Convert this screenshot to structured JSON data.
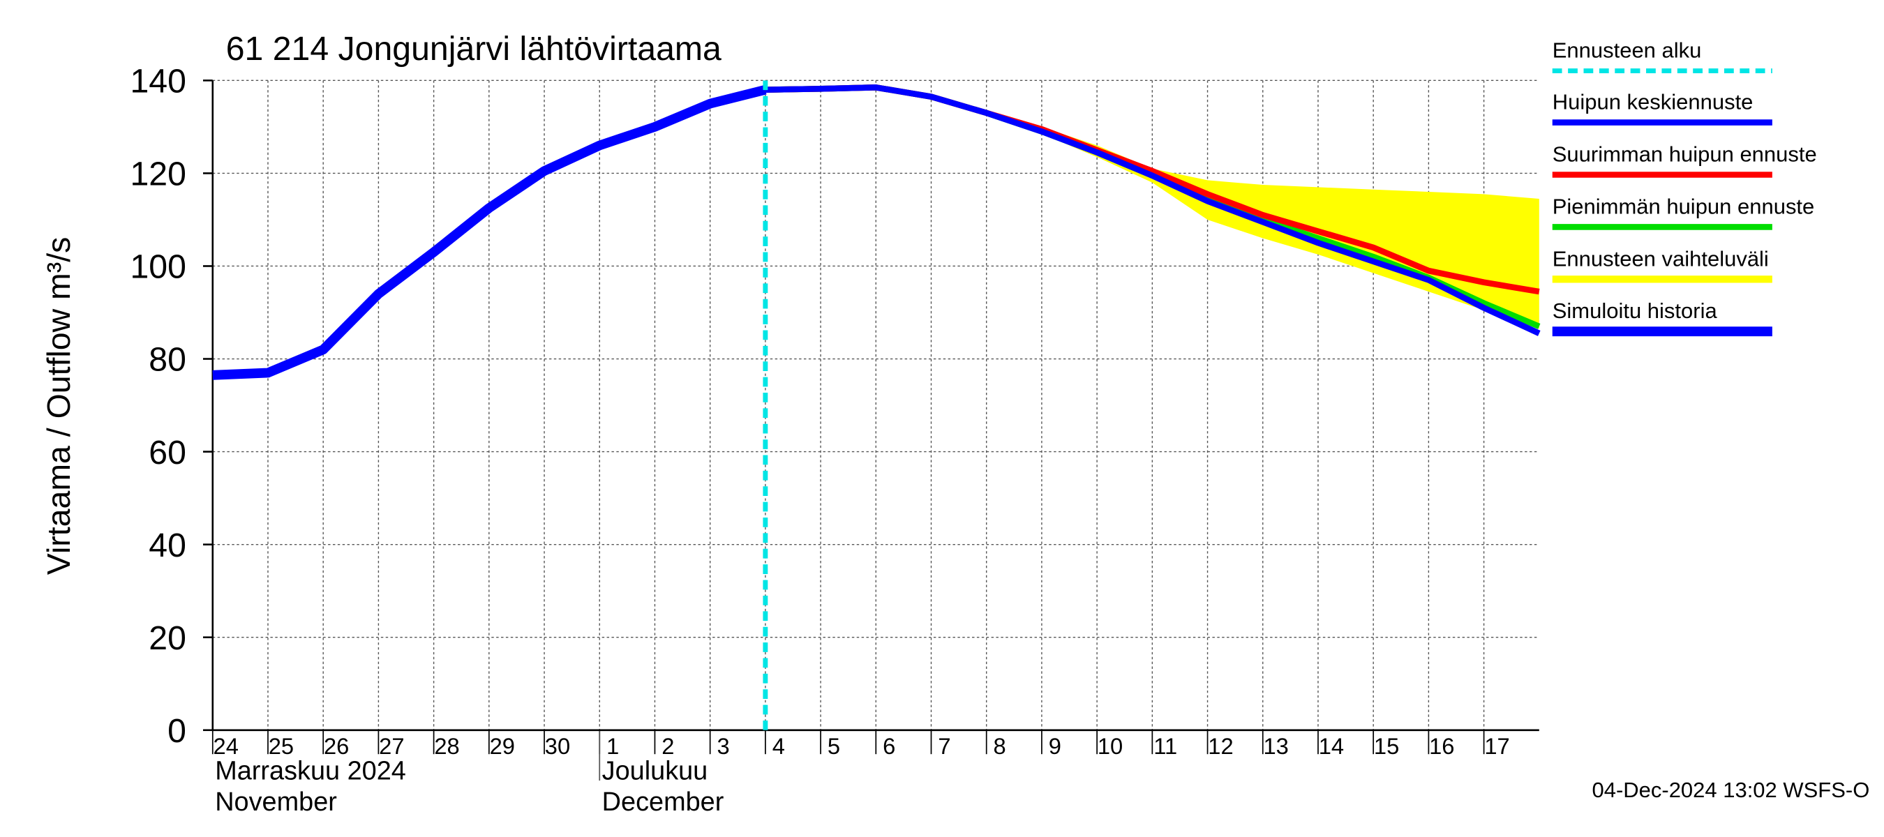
{
  "chart_data": {
    "type": "line",
    "title": "61 214 Jongunjärvi lähtövirtaama",
    "y_label": "Virtaama / Outflow   m³/s",
    "footer": "04-Dec-2024 13:02 WSFS-O",
    "x": [
      "2024-11-24",
      "2024-11-25",
      "2024-11-26",
      "2024-11-27",
      "2024-11-28",
      "2024-11-29",
      "2024-11-30",
      "2024-12-01",
      "2024-12-02",
      "2024-12-03",
      "2024-12-04",
      "2024-12-05",
      "2024-12-06",
      "2024-12-07",
      "2024-12-08",
      "2024-12-09",
      "2024-12-10",
      "2024-12-11",
      "2024-12-12",
      "2024-12-13",
      "2024-12-14",
      "2024-12-15",
      "2024-12-16",
      "2024-12-17",
      "2024-12-18"
    ],
    "xlim": [
      "2024-11-24",
      "2024-12-18"
    ],
    "xticks": [
      {
        "value": "2024-11-24",
        "label": "24"
      },
      {
        "value": "2024-11-25",
        "label": "25"
      },
      {
        "value": "2024-11-26",
        "label": "26"
      },
      {
        "value": "2024-11-27",
        "label": "27"
      },
      {
        "value": "2024-11-28",
        "label": "28"
      },
      {
        "value": "2024-11-29",
        "label": "29"
      },
      {
        "value": "2024-11-30",
        "label": "30"
      },
      {
        "value": "2024-12-01",
        "label": "1"
      },
      {
        "value": "2024-12-02",
        "label": "2"
      },
      {
        "value": "2024-12-03",
        "label": "3"
      },
      {
        "value": "2024-12-04",
        "label": "4"
      },
      {
        "value": "2024-12-05",
        "label": "5"
      },
      {
        "value": "2024-12-06",
        "label": "6"
      },
      {
        "value": "2024-12-07",
        "label": "7"
      },
      {
        "value": "2024-12-08",
        "label": "8"
      },
      {
        "value": "2024-12-09",
        "label": "9"
      },
      {
        "value": "2024-12-10",
        "label": "10"
      },
      {
        "value": "2024-12-11",
        "label": "11"
      },
      {
        "value": "2024-12-12",
        "label": "12"
      },
      {
        "value": "2024-12-13",
        "label": "13"
      },
      {
        "value": "2024-12-14",
        "label": "14"
      },
      {
        "value": "2024-12-15",
        "label": "15"
      },
      {
        "value": "2024-12-16",
        "label": "16"
      },
      {
        "value": "2024-12-17",
        "label": "17"
      }
    ],
    "month_labels": [
      {
        "x": "2024-11-24",
        "lines": [
          "Marraskuu 2024",
          "November"
        ]
      },
      {
        "x": "2024-12-01",
        "lines": [
          "Joulukuu",
          "December"
        ]
      }
    ],
    "ylim": [
      0,
      140
    ],
    "yticks": [
      0,
      20,
      40,
      60,
      80,
      100,
      120,
      140
    ],
    "grid": true,
    "forecast_start": {
      "name": "Ennusteen alku",
      "x": "2024-12-04",
      "color": "#00e5e5"
    },
    "series": [
      {
        "name": "Huipun keskiennuste",
        "color": "#0000ff",
        "values": [
          null,
          null,
          null,
          null,
          null,
          null,
          null,
          null,
          null,
          null,
          138,
          138.2,
          138.5,
          136.5,
          133,
          129,
          124.5,
          119.5,
          114,
          109.5,
          105,
          101,
          97,
          91,
          85.5
        ]
      },
      {
        "name": "Suurimman huipun ennuste",
        "color": "#ff0000",
        "values": [
          null,
          null,
          null,
          null,
          null,
          null,
          null,
          null,
          null,
          null,
          138,
          138.2,
          138.5,
          136.5,
          133,
          129.5,
          125,
          120.5,
          115.5,
          111,
          107.5,
          104,
          99,
          96.5,
          94.5
        ]
      },
      {
        "name": "Pienimmän huipun ennuste",
        "color": "#00dd00",
        "values": [
          null,
          null,
          null,
          null,
          null,
          null,
          null,
          null,
          null,
          null,
          138,
          138.2,
          138.5,
          136.5,
          133,
          129,
          124.5,
          119.5,
          114.5,
          110,
          106,
          102,
          97.5,
          92,
          87
        ]
      },
      {
        "name": "Ennusteen vaihteluväli",
        "color": "#ffff00",
        "values": [
          null,
          null,
          null,
          null,
          null,
          null,
          null,
          null,
          null,
          null,
          138,
          138.2,
          138.5,
          136.5,
          133.5,
          130,
          126,
          121,
          118.5,
          117.5,
          117,
          116.5,
          116,
          115.5,
          114.5
        ],
        "lower": [
          null,
          null,
          null,
          null,
          null,
          null,
          null,
          null,
          null,
          null,
          138,
          138.2,
          138.5,
          136.5,
          133,
          128.5,
          123.5,
          118,
          110,
          106,
          102.5,
          98.5,
          94.5,
          90.5,
          86.5
        ]
      },
      {
        "name": "Simuloitu historia",
        "color": "#0000ff",
        "values": [
          76.5,
          77,
          82,
          94,
          103,
          112.5,
          120.5,
          126,
          130,
          135,
          138,
          null,
          null,
          null,
          null,
          null,
          null,
          null,
          null,
          null,
          null,
          null,
          null,
          null,
          null
        ]
      }
    ]
  }
}
